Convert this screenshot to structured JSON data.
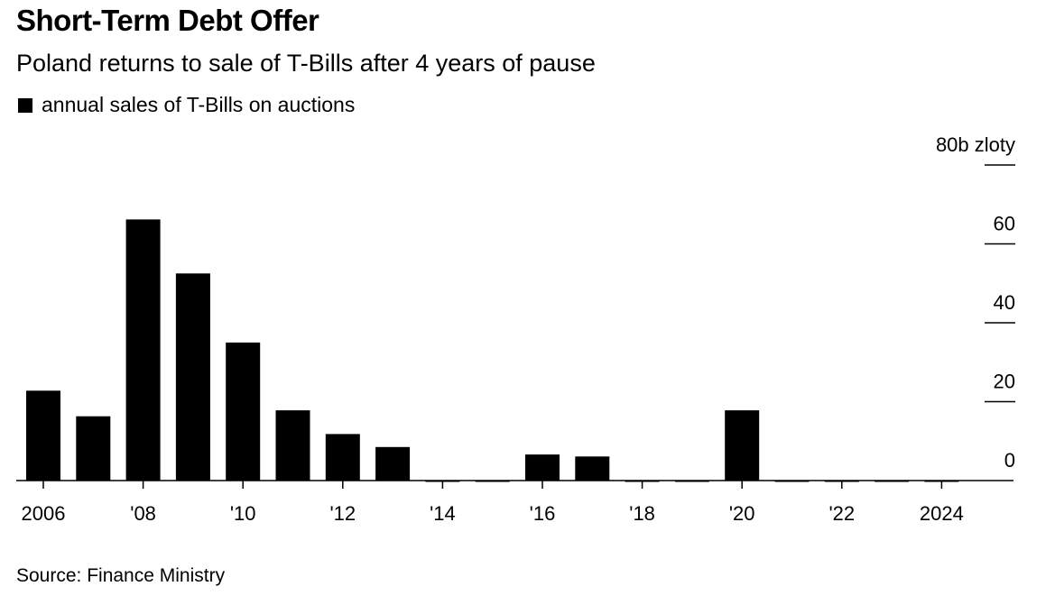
{
  "header": {
    "title": "Short-Term Debt Offer",
    "subtitle": "Poland returns to sale of T-Bills after 4 years of pause"
  },
  "legend": {
    "label": "annual sales of T-Bills on auctions",
    "color": "#000000"
  },
  "footer": {
    "source": "Source: Finance Ministry"
  },
  "chart_data": {
    "type": "bar",
    "categories": [
      "2006",
      "2007",
      "2008",
      "2009",
      "2010",
      "2011",
      "2012",
      "2013",
      "2014",
      "2015",
      "2016",
      "2017",
      "2018",
      "2019",
      "2020",
      "2021",
      "2022",
      "2023",
      "2024"
    ],
    "values": [
      22.8,
      16.3,
      66.2,
      52.5,
      35,
      17.8,
      11.8,
      8.5,
      0,
      0,
      6.6,
      6.1,
      0,
      0,
      17.8,
      0,
      0,
      0,
      0
    ],
    "series": [
      {
        "name": "annual sales of T-Bills on auctions",
        "values": [
          22.8,
          16.3,
          66.2,
          52.5,
          35,
          17.8,
          11.8,
          8.5,
          0,
          0,
          6.6,
          6.1,
          0,
          0,
          17.8,
          0,
          0,
          0,
          0
        ]
      }
    ],
    "x_tick_labels": [
      {
        "category": "2006",
        "label": "2006"
      },
      {
        "category": "2008",
        "label": "'08"
      },
      {
        "category": "2010",
        "label": "'10"
      },
      {
        "category": "2012",
        "label": "'12"
      },
      {
        "category": "2014",
        "label": "'14"
      },
      {
        "category": "2016",
        "label": "'16"
      },
      {
        "category": "2018",
        "label": "'18"
      },
      {
        "category": "2020",
        "label": "'20"
      },
      {
        "category": "2022",
        "label": "'22"
      },
      {
        "category": "2024",
        "label": "2024"
      }
    ],
    "y_ticks": [
      {
        "value": 0,
        "label": "0"
      },
      {
        "value": 20,
        "label": "20"
      },
      {
        "value": 40,
        "label": "40"
      },
      {
        "value": 60,
        "label": "60"
      },
      {
        "value": 80,
        "label": "80b zloty"
      }
    ],
    "ylim": [
      0,
      80
    ],
    "y_axis_side": "right",
    "grid": false,
    "legend_position": "top-left",
    "bar_color": "#000000"
  }
}
